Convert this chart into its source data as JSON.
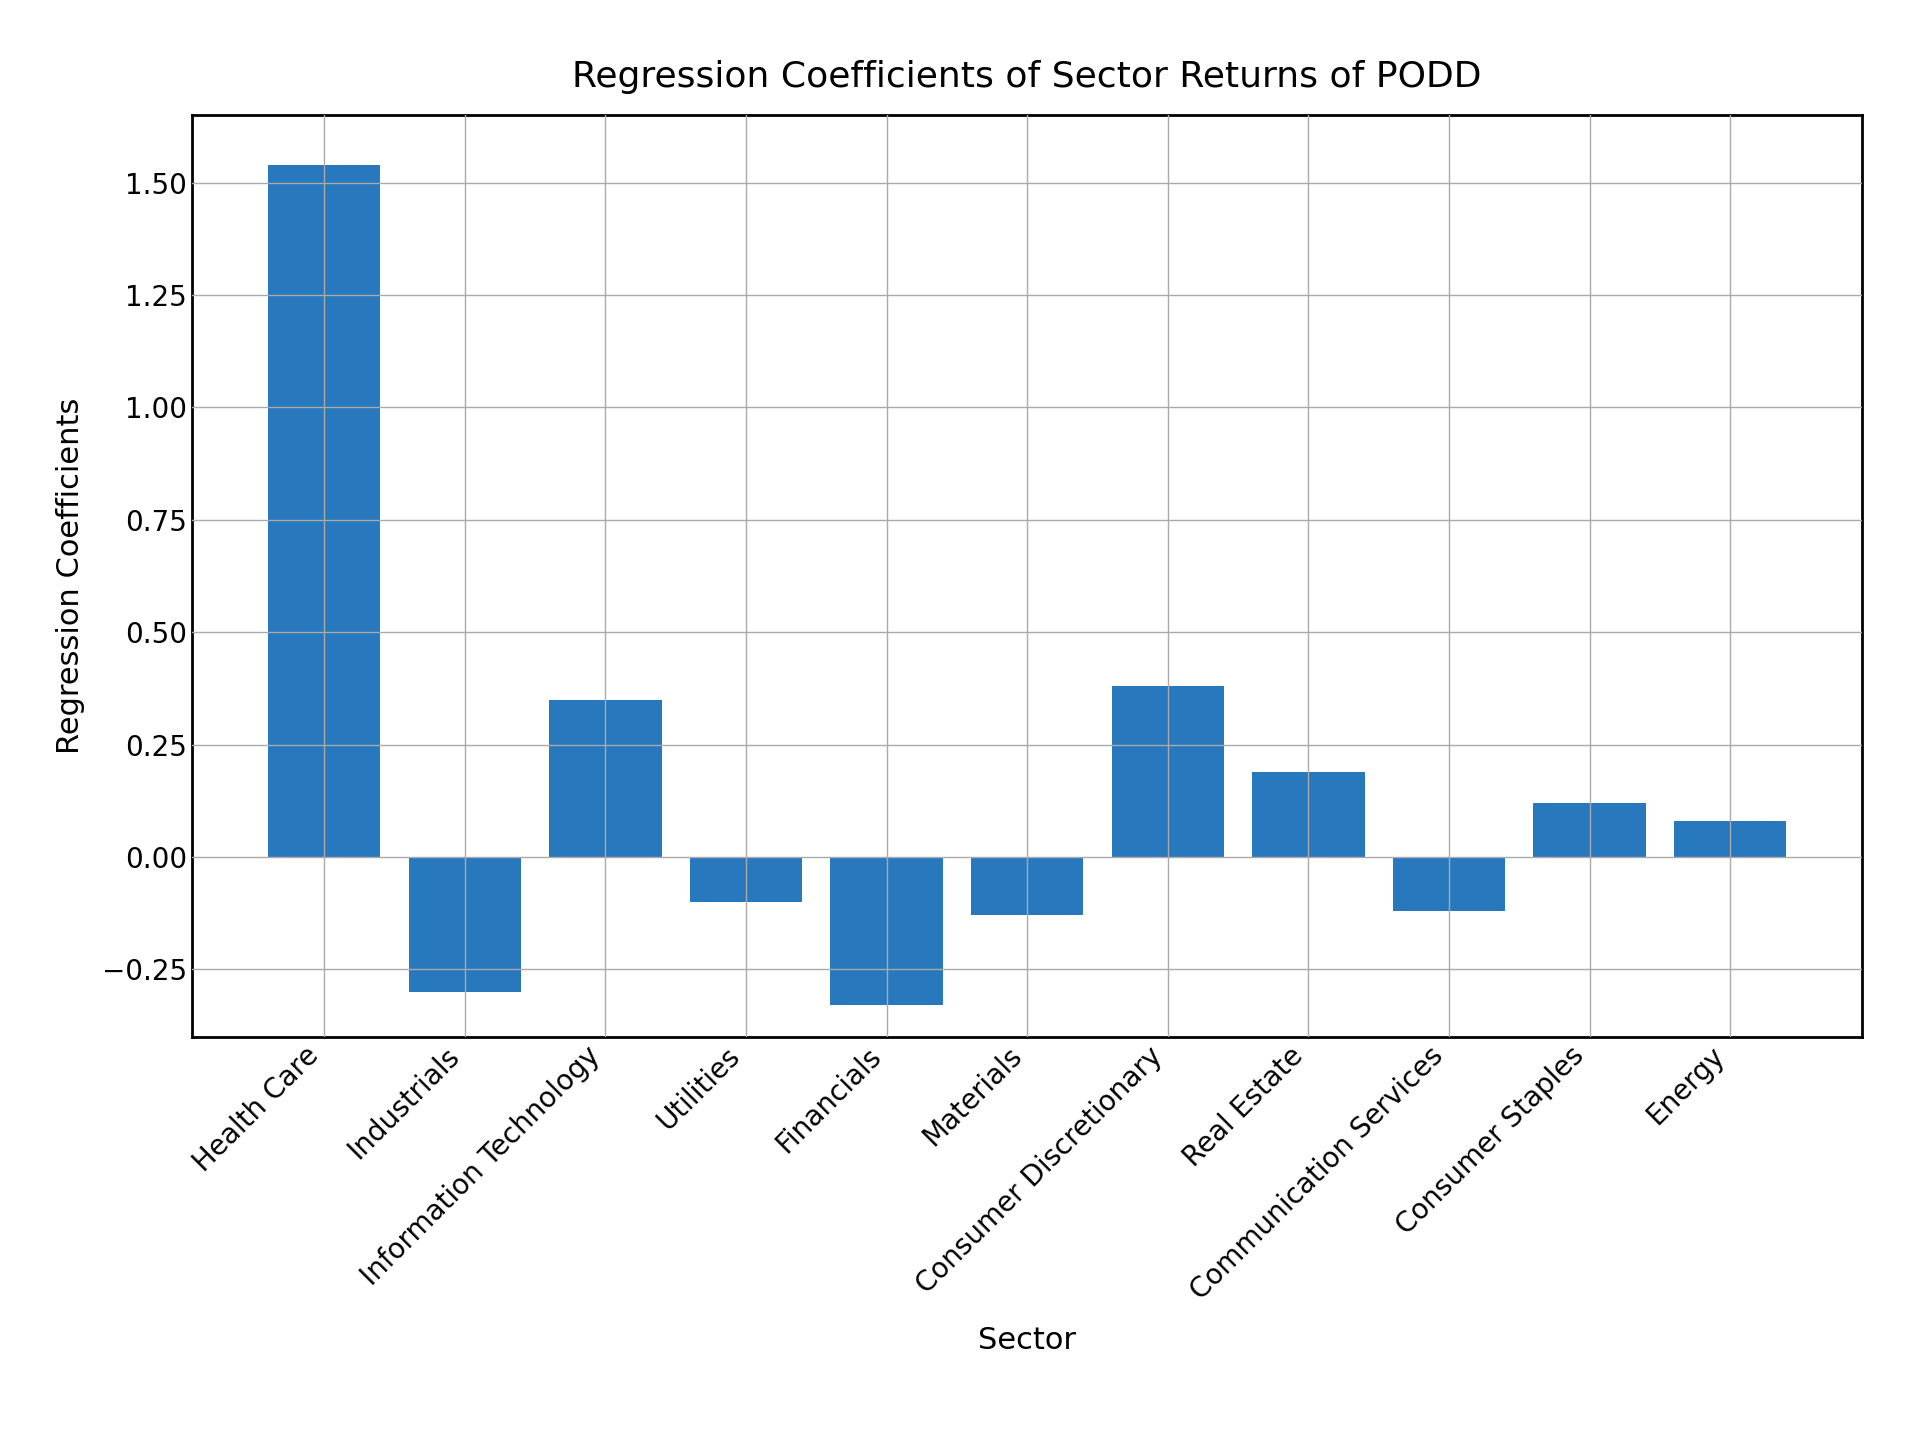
{
  "title": "Regression Coefficients of Sector Returns of PODD",
  "xlabel": "Sector",
  "ylabel": "Regression Coefficients",
  "categories": [
    "Health Care",
    "Industrials",
    "Information Technology",
    "Utilities",
    "Financials",
    "Materials",
    "Consumer Discretionary",
    "Real Estate",
    "Communication Services",
    "Consumer Staples",
    "Energy"
  ],
  "values": [
    1.54,
    -0.3,
    0.35,
    -0.1,
    -0.33,
    -0.13,
    0.38,
    0.19,
    -0.12,
    0.12,
    0.08
  ],
  "bar_color": "#2878BD",
  "bar_edgecolor": "#2878BD",
  "background_color": "#FFFFFF",
  "grid_color": "#AAAAAA",
  "ylim": [
    -0.4,
    1.65
  ],
  "title_fontsize": 26,
  "label_fontsize": 22,
  "tick_fontsize": 20,
  "figsize": [
    19.2,
    14.4
  ],
  "dpi": 100
}
